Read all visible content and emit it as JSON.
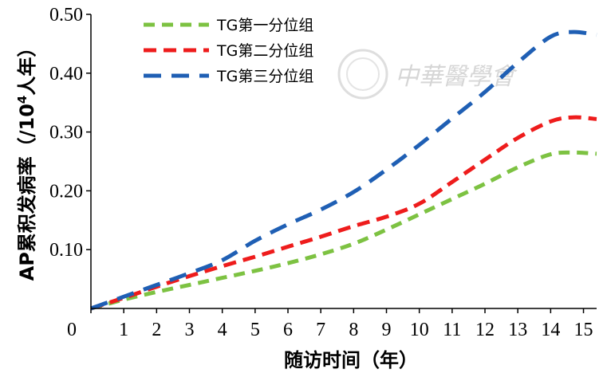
{
  "chart_data": {
    "type": "line",
    "title": "",
    "xlabel": "随访时间（年）",
    "ylabel_prefix": "AP累积发病率（/10",
    "ylabel_sup": "4",
    "ylabel_suffix": "人年）",
    "xlim": [
      0,
      15.4
    ],
    "ylim": [
      0,
      0.5
    ],
    "x_ticks": [
      "0",
      "1",
      "2",
      "3",
      "4",
      "5",
      "6",
      "7",
      "8",
      "9",
      "10",
      "11",
      "12",
      "13",
      "14",
      "15"
    ],
    "y_ticks": [
      {
        "value": 0.1,
        "label": "0.10"
      },
      {
        "value": 0.2,
        "label": "0.20"
      },
      {
        "value": 0.3,
        "label": "0.30"
      },
      {
        "value": 0.4,
        "label": "0.40"
      },
      {
        "value": 0.5,
        "label": "0.50"
      }
    ],
    "legend_position": "top-left",
    "grid": false,
    "series": [
      {
        "name": "TG第一分位组",
        "color": "#7dc242",
        "x": [
          0,
          1,
          2,
          3,
          4,
          5,
          6,
          7,
          8,
          9,
          10,
          11,
          12,
          13,
          14,
          14.7,
          15.4
        ],
        "values": [
          0,
          0.015,
          0.028,
          0.04,
          0.052,
          0.064,
          0.077,
          0.092,
          0.11,
          0.134,
          0.16,
          0.186,
          0.212,
          0.24,
          0.262,
          0.265,
          0.263
        ]
      },
      {
        "name": "TG第二分位组",
        "color": "#ee1c1c",
        "x": [
          0,
          1,
          2,
          3,
          4,
          5,
          6,
          7,
          8,
          9,
          10,
          11,
          12,
          13,
          14,
          14.7,
          15.4
        ],
        "values": [
          0,
          0.018,
          0.037,
          0.055,
          0.072,
          0.088,
          0.105,
          0.122,
          0.14,
          0.156,
          0.178,
          0.215,
          0.253,
          0.29,
          0.318,
          0.325,
          0.322
        ]
      },
      {
        "name": "TG第三分位组",
        "color": "#1f5fb4",
        "x": [
          0,
          1,
          2,
          3,
          4,
          5,
          6,
          7,
          8,
          9,
          10,
          11,
          12,
          13,
          14,
          14.7,
          15.4
        ],
        "values": [
          0,
          0.02,
          0.04,
          0.06,
          0.082,
          0.115,
          0.143,
          0.168,
          0.198,
          0.236,
          0.278,
          0.323,
          0.368,
          0.418,
          0.462,
          0.47,
          0.465
        ]
      }
    ]
  },
  "watermark": "中華醫學會"
}
